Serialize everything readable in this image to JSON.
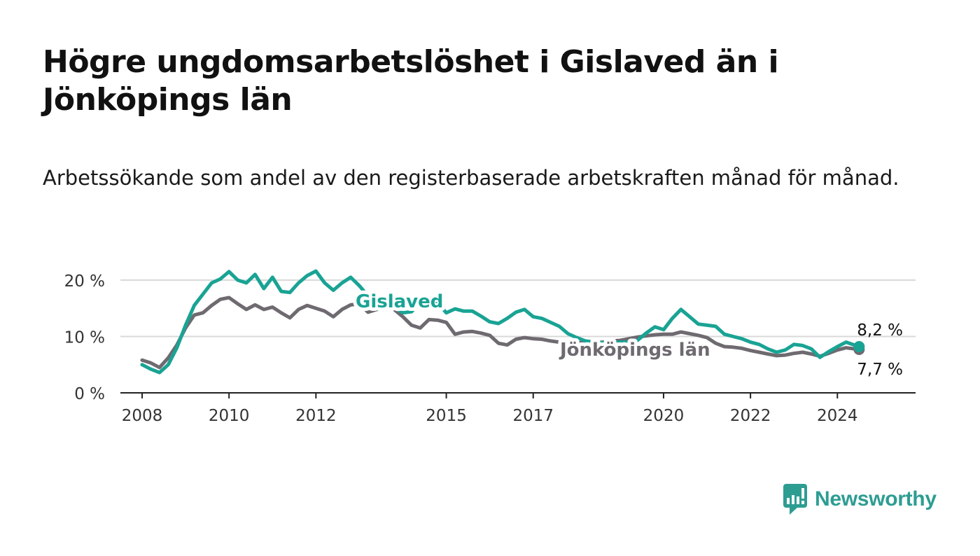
{
  "title": "Högre ungdomsarbetslöshet i Gislaved än i Jönköpings län",
  "subtitle": "Arbetssökande som andel av den registerbaserade arbetskraften månad för månad.",
  "logo": {
    "text": "Newsworthy",
    "color": "#2d9d92"
  },
  "chart_data": {
    "type": "line",
    "title": "Högre ungdomsarbetslöshet i Gislaved än i Jönköpings län",
    "ylabel": "",
    "xlabel": "",
    "ylim": [
      0,
      20
    ],
    "xlim": [
      2007.5,
      2025.8
    ],
    "y_ticks": [
      0,
      10,
      20
    ],
    "y_tick_labels": [
      "0 %",
      "10 %",
      "20 %"
    ],
    "x_ticks": [
      2008,
      2010,
      2012,
      2015,
      2017,
      2020,
      2022,
      2024
    ],
    "x_tick_labels": [
      "2008",
      "2010",
      "2012",
      "2015",
      "2017",
      "2020",
      "2022",
      "2024"
    ],
    "grid": true,
    "series": [
      {
        "name": "Jönköpings län",
        "label": "Jönköpings län",
        "color": "#6e6a70",
        "end_label": "7,7 %",
        "x": [
          2008.0,
          2008.2,
          2008.4,
          2008.6,
          2008.8,
          2009.0,
          2009.2,
          2009.4,
          2009.6,
          2009.8,
          2010.0,
          2010.2,
          2010.4,
          2010.6,
          2010.8,
          2011.0,
          2011.2,
          2011.4,
          2011.6,
          2011.8,
          2012.0,
          2012.2,
          2012.4,
          2012.6,
          2012.8,
          2013.0,
          2013.2,
          2013.4,
          2013.6,
          2013.8,
          2014.0,
          2014.2,
          2014.4,
          2014.6,
          2014.8,
          2015.0,
          2015.2,
          2015.4,
          2015.6,
          2015.8,
          2016.0,
          2016.2,
          2016.4,
          2016.6,
          2016.8,
          2017.0,
          2017.2,
          2017.4,
          2017.6,
          2017.8,
          2018.0,
          2018.2,
          2018.4,
          2018.6,
          2018.8,
          2019.0,
          2019.2,
          2019.4,
          2019.6,
          2019.8,
          2020.0,
          2020.2,
          2020.4,
          2020.6,
          2020.8,
          2021.0,
          2021.2,
          2021.4,
          2021.6,
          2021.8,
          2022.0,
          2022.2,
          2022.4,
          2022.6,
          2022.8,
          2023.0,
          2023.2,
          2023.4,
          2023.6,
          2023.8,
          2024.0,
          2024.2,
          2024.5
        ],
        "y": [
          5.8,
          5.3,
          4.5,
          6.2,
          8.5,
          11.5,
          13.8,
          14.2,
          15.5,
          16.6,
          16.9,
          15.8,
          14.8,
          15.6,
          14.8,
          15.2,
          14.2,
          13.3,
          14.8,
          15.5,
          15.0,
          14.5,
          13.5,
          14.8,
          15.6,
          15.8,
          14.3,
          14.8,
          15.2,
          14.8,
          13.5,
          12.0,
          11.5,
          13.0,
          12.9,
          12.5,
          10.4,
          10.8,
          10.9,
          10.6,
          10.2,
          8.8,
          8.5,
          9.5,
          9.8,
          9.6,
          9.5,
          9.2,
          9.0,
          9.0,
          8.9,
          8.9,
          8.9,
          9.0,
          9.2,
          9.3,
          9.6,
          9.9,
          10.1,
          10.3,
          10.4,
          10.4,
          10.8,
          10.5,
          10.2,
          9.8,
          8.8,
          8.2,
          8.1,
          7.9,
          7.5,
          7.2,
          6.9,
          6.6,
          6.7,
          7.0,
          7.2,
          6.9,
          6.5,
          7.0,
          7.6,
          8.0,
          7.7
        ]
      },
      {
        "name": "Gislaved",
        "label": "Gislaved",
        "color": "#19a394",
        "end_label": "8,2 %",
        "x": [
          2008.0,
          2008.2,
          2008.4,
          2008.6,
          2008.8,
          2009.0,
          2009.2,
          2009.4,
          2009.6,
          2009.8,
          2010.0,
          2010.2,
          2010.4,
          2010.6,
          2010.8,
          2011.0,
          2011.2,
          2011.4,
          2011.6,
          2011.8,
          2012.0,
          2012.2,
          2012.4,
          2012.6,
          2012.8,
          2013.0,
          2013.2,
          2013.4,
          2013.6,
          2013.8,
          2014.0,
          2014.2,
          2014.4,
          2014.6,
          2014.8,
          2015.0,
          2015.2,
          2015.4,
          2015.6,
          2015.8,
          2016.0,
          2016.2,
          2016.4,
          2016.6,
          2016.8,
          2017.0,
          2017.2,
          2017.4,
          2017.6,
          2017.8,
          2018.0,
          2018.2,
          2018.4,
          2018.6,
          2018.8,
          2019.0,
          2019.2,
          2019.4,
          2019.6,
          2019.8,
          2020.0,
          2020.2,
          2020.4,
          2020.6,
          2020.8,
          2021.0,
          2021.2,
          2021.4,
          2021.6,
          2021.8,
          2022.0,
          2022.2,
          2022.4,
          2022.6,
          2022.8,
          2023.0,
          2023.2,
          2023.4,
          2023.6,
          2023.8,
          2024.0,
          2024.2,
          2024.5
        ],
        "y": [
          5.0,
          4.2,
          3.6,
          5.0,
          8.0,
          12.0,
          15.5,
          17.5,
          19.5,
          20.2,
          21.5,
          20.0,
          19.5,
          21.0,
          18.5,
          20.5,
          18.0,
          17.8,
          19.5,
          20.8,
          21.6,
          19.5,
          18.2,
          19.5,
          20.5,
          19.0,
          17.2,
          16.4,
          15.8,
          15.2,
          14.2,
          14.4,
          16.0,
          16.8,
          16.0,
          14.2,
          14.9,
          14.5,
          14.5,
          13.6,
          12.6,
          12.3,
          13.2,
          14.3,
          14.8,
          13.5,
          13.2,
          12.5,
          11.8,
          10.5,
          9.8,
          9.2,
          9.0,
          8.9,
          8.9,
          9.0,
          9.0,
          9.3,
          10.6,
          11.7,
          11.2,
          13.2,
          14.8,
          13.5,
          12.2,
          12.0,
          11.8,
          10.4,
          10.0,
          9.6,
          9.0,
          8.6,
          7.8,
          7.2,
          7.6,
          8.6,
          8.4,
          7.8,
          6.3,
          7.3,
          8.2,
          9.0,
          8.2
        ]
      }
    ]
  }
}
